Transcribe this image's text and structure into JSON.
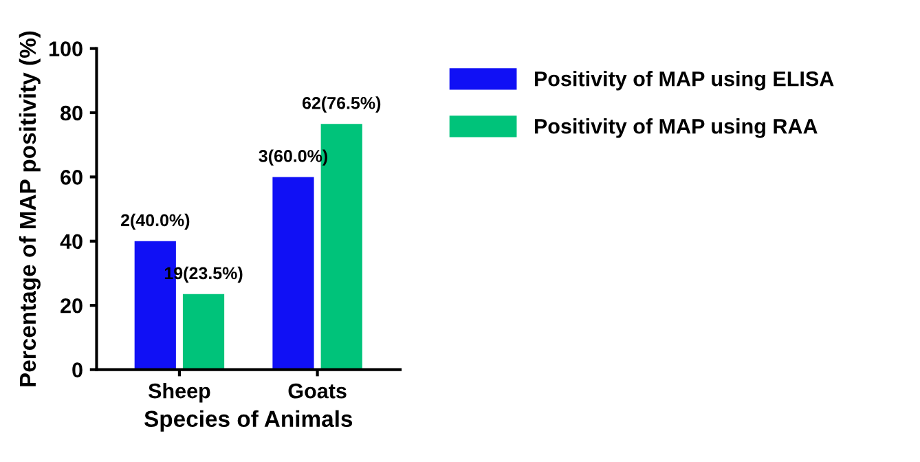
{
  "chart_data": {
    "type": "bar",
    "xlabel": "Species of Animals",
    "ylabel": "Percentage of MAP positivity (%)",
    "categories": [
      "Sheep",
      "Goats"
    ],
    "series": [
      {
        "name": "Positivity of MAP using ELISA",
        "color": "#1010f5",
        "values": [
          40,
          60
        ],
        "value_labels": [
          "2(40.0%)",
          "3(60.0%)"
        ]
      },
      {
        "name": "Positivity of MAP using RAA",
        "color": "#00c37a",
        "values": [
          23.5,
          76.5
        ],
        "value_labels": [
          "19(23.5%)",
          "62(76.5%)"
        ]
      }
    ],
    "ylim": [
      0,
      100
    ],
    "yticks": [
      0,
      20,
      40,
      60,
      80,
      100
    ],
    "grid": false,
    "legend": "right"
  }
}
